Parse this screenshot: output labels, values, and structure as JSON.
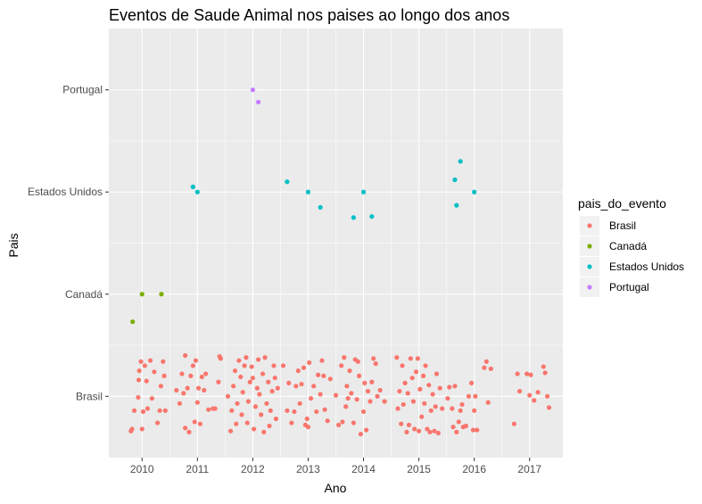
{
  "chart_data": {
    "type": "scatter",
    "title": "Eventos de Saude Animal nos paises ao longo dos anos",
    "xlabel": "Ano",
    "ylabel": "Pais",
    "xlim": [
      2009.4,
      2017.6
    ],
    "xticks": [
      2010,
      2011,
      2012,
      2013,
      2014,
      2015,
      2016,
      2017
    ],
    "categories": [
      "Brasil",
      "Canadá",
      "Estados Unidos",
      "Portugal"
    ],
    "ylim": [
      0.4,
      4.6
    ],
    "grid": true,
    "legend": {
      "title": "pais_do_evento",
      "position": "right",
      "entries": [
        "Brasil",
        "Canadá",
        "Estados Unidos",
        "Portugal"
      ]
    },
    "colors": {
      "Brasil": "#F8766D",
      "Canadá": "#7CAE00",
      "Estados Unidos": "#00BFC4",
      "Portugal": "#C77CFF",
      "panel": "#EBEBEB",
      "grid": "#FFFFFF"
    },
    "series": [
      {
        "name": "Brasil",
        "points": [
          [
            2009.8,
            0.66
          ],
          [
            2009.82,
            0.68
          ],
          [
            2009.86,
            0.86
          ],
          [
            2009.93,
            0.99
          ],
          [
            2009.94,
            1.16
          ],
          [
            2009.95,
            1.25
          ],
          [
            2009.98,
            1.34
          ],
          [
            2010.0,
            0.68
          ],
          [
            2010.02,
            0.85
          ],
          [
            2010.05,
            1.3
          ],
          [
            2010.08,
            1.15
          ],
          [
            2010.1,
            0.88
          ],
          [
            2010.15,
            1.35
          ],
          [
            2010.18,
            0.98
          ],
          [
            2010.22,
            1.24
          ],
          [
            2010.28,
            0.74
          ],
          [
            2010.32,
            0.86
          ],
          [
            2010.34,
            1.1
          ],
          [
            2010.38,
            1.34
          ],
          [
            2010.4,
            1.2
          ],
          [
            2010.42,
            0.86
          ],
          [
            2010.62,
            1.06
          ],
          [
            2010.68,
            0.93
          ],
          [
            2010.72,
            1.22
          ],
          [
            2010.75,
            1.03
          ],
          [
            2010.78,
            1.4
          ],
          [
            2010.78,
            0.69
          ],
          [
            2010.82,
            1.08
          ],
          [
            2010.85,
            0.65
          ],
          [
            2010.88,
            1.2
          ],
          [
            2010.92,
            1.3
          ],
          [
            2010.95,
            0.75
          ],
          [
            2010.97,
            1.35
          ],
          [
            2011.0,
            0.94
          ],
          [
            2011.02,
            1.08
          ],
          [
            2011.05,
            0.73
          ],
          [
            2011.08,
            1.19
          ],
          [
            2011.12,
            1.06
          ],
          [
            2011.15,
            1.22
          ],
          [
            2011.2,
            0.87
          ],
          [
            2011.28,
            0.88
          ],
          [
            2011.32,
            0.88
          ],
          [
            2011.38,
            1.14
          ],
          [
            2011.4,
            1.39
          ],
          [
            2011.42,
            1.37
          ],
          [
            2011.55,
            1.0
          ],
          [
            2011.6,
            0.66
          ],
          [
            2011.62,
            0.86
          ],
          [
            2011.65,
            1.1
          ],
          [
            2011.68,
            1.25
          ],
          [
            2011.7,
            0.73
          ],
          [
            2011.72,
            0.93
          ],
          [
            2011.75,
            1.35
          ],
          [
            2011.78,
            1.19
          ],
          [
            2011.8,
            0.82
          ],
          [
            2011.82,
            1.04
          ],
          [
            2011.85,
            1.3
          ],
          [
            2011.88,
            1.38
          ],
          [
            2011.9,
            0.74
          ],
          [
            2011.92,
            0.95
          ],
          [
            2011.95,
            1.14
          ],
          [
            2011.98,
            1.29
          ],
          [
            2012.0,
            1.18
          ],
          [
            2012.02,
            0.68
          ],
          [
            2012.05,
            0.9
          ],
          [
            2012.08,
            1.08
          ],
          [
            2012.1,
            1.36
          ],
          [
            2012.12,
            1.02
          ],
          [
            2012.15,
            0.82
          ],
          [
            2012.18,
            1.22
          ],
          [
            2012.2,
            0.65
          ],
          [
            2012.22,
            1.38
          ],
          [
            2012.25,
            0.93
          ],
          [
            2012.28,
            1.14
          ],
          [
            2012.3,
            0.71
          ],
          [
            2012.32,
            0.86
          ],
          [
            2012.35,
            1.05
          ],
          [
            2012.38,
            1.3
          ],
          [
            2012.4,
            1.18
          ],
          [
            2012.42,
            0.78
          ],
          [
            2012.45,
            1.08
          ],
          [
            2012.55,
            1.3
          ],
          [
            2012.62,
            0.86
          ],
          [
            2012.65,
            1.13
          ],
          [
            2012.7,
            0.74
          ],
          [
            2012.75,
            0.85
          ],
          [
            2012.78,
            1.1
          ],
          [
            2012.82,
            1.25
          ],
          [
            2012.85,
            0.93
          ],
          [
            2012.88,
            1.12
          ],
          [
            2012.92,
            1.28
          ],
          [
            2012.95,
            0.72
          ],
          [
            2012.98,
            0.78
          ],
          [
            2013.0,
            0.7
          ],
          [
            2013.02,
            1.33
          ],
          [
            2013.05,
            0.98
          ],
          [
            2013.1,
            1.1
          ],
          [
            2013.15,
            0.85
          ],
          [
            2013.18,
            1.21
          ],
          [
            2013.22,
            1.02
          ],
          [
            2013.25,
            1.35
          ],
          [
            2013.28,
            1.2
          ],
          [
            2013.3,
            0.87
          ],
          [
            2013.35,
            0.76
          ],
          [
            2013.4,
            1.17
          ],
          [
            2013.5,
            1.01
          ],
          [
            2013.55,
            0.72
          ],
          [
            2013.62,
            0.75
          ],
          [
            2013.6,
            1.3
          ],
          [
            2013.65,
            1.38
          ],
          [
            2013.68,
            0.9
          ],
          [
            2013.7,
            1.1
          ],
          [
            2013.72,
            0.98
          ],
          [
            2013.75,
            1.25
          ],
          [
            2013.78,
            1.03
          ],
          [
            2013.82,
            0.74
          ],
          [
            2013.85,
            1.36
          ],
          [
            2013.88,
            0.97
          ],
          [
            2013.9,
            1.34
          ],
          [
            2013.92,
            1.2
          ],
          [
            2013.95,
            0.63
          ],
          [
            2014.0,
            0.85
          ],
          [
            2014.02,
            1.13
          ],
          [
            2014.05,
            0.67
          ],
          [
            2014.08,
            1.05
          ],
          [
            2014.12,
            0.95
          ],
          [
            2014.15,
            1.14
          ],
          [
            2014.18,
            1.37
          ],
          [
            2014.22,
            1.32
          ],
          [
            2014.25,
            1.0
          ],
          [
            2014.3,
            1.06
          ],
          [
            2014.38,
            0.95
          ],
          [
            2014.6,
            1.38
          ],
          [
            2014.62,
            0.88
          ],
          [
            2014.65,
            1.05
          ],
          [
            2014.68,
            0.73
          ],
          [
            2014.7,
            1.3
          ],
          [
            2014.72,
            0.92
          ],
          [
            2014.75,
            1.13
          ],
          [
            2014.78,
            0.65
          ],
          [
            2014.8,
            1.03
          ],
          [
            2014.82,
            0.72
          ],
          [
            2014.85,
            1.37
          ],
          [
            2014.88,
            1.18
          ],
          [
            2014.9,
            0.95
          ],
          [
            2014.92,
            0.68
          ],
          [
            2014.95,
            1.24
          ],
          [
            2014.98,
            1.37
          ],
          [
            2015.0,
            0.66
          ],
          [
            2015.02,
            1.07
          ],
          [
            2015.05,
            0.8
          ],
          [
            2015.08,
            1.2
          ],
          [
            2015.1,
            0.93
          ],
          [
            2015.12,
            1.3
          ],
          [
            2015.15,
            0.68
          ],
          [
            2015.18,
            1.11
          ],
          [
            2015.2,
            0.65
          ],
          [
            2015.22,
            0.86
          ],
          [
            2015.25,
            1.02
          ],
          [
            2015.28,
            0.66
          ],
          [
            2015.3,
            0.9
          ],
          [
            2015.32,
            1.22
          ],
          [
            2015.35,
            0.64
          ],
          [
            2015.38,
            1.08
          ],
          [
            2015.42,
            0.88
          ],
          [
            2015.52,
            0.98
          ],
          [
            2015.55,
            1.09
          ],
          [
            2015.6,
            0.88
          ],
          [
            2015.62,
            0.7
          ],
          [
            2015.65,
            1.1
          ],
          [
            2015.68,
            0.65
          ],
          [
            2015.72,
            0.75
          ],
          [
            2015.75,
            0.86
          ],
          [
            2015.78,
            0.92
          ],
          [
            2015.8,
            0.7
          ],
          [
            2015.85,
            0.71
          ],
          [
            2015.9,
            1.0
          ],
          [
            2015.95,
            1.13
          ],
          [
            2015.98,
            0.67
          ],
          [
            2016.0,
            0.86
          ],
          [
            2016.02,
            1.0
          ],
          [
            2016.05,
            0.67
          ],
          [
            2016.18,
            1.28
          ],
          [
            2016.22,
            1.34
          ],
          [
            2016.25,
            0.94
          ],
          [
            2016.3,
            1.27
          ],
          [
            2016.72,
            0.73
          ],
          [
            2016.78,
            1.22
          ],
          [
            2016.82,
            1.05
          ],
          [
            2016.95,
            1.22
          ],
          [
            2017.0,
            1.01
          ],
          [
            2017.02,
            1.21
          ],
          [
            2017.08,
            0.96
          ],
          [
            2017.15,
            1.04
          ],
          [
            2017.25,
            1.29
          ],
          [
            2017.28,
            1.23
          ],
          [
            2017.32,
            1.0
          ],
          [
            2017.35,
            0.89
          ]
        ]
      },
      {
        "name": "Canadá",
        "points": [
          [
            2009.83,
            1.73
          ],
          [
            2010.0,
            2.0
          ],
          [
            2010.35,
            2.0
          ]
        ]
      },
      {
        "name": "Estados Unidos",
        "points": [
          [
            2010.92,
            3.05
          ],
          [
            2011.0,
            3.0
          ],
          [
            2012.62,
            3.1
          ],
          [
            2013.0,
            3.0
          ],
          [
            2013.22,
            2.85
          ],
          [
            2013.82,
            2.75
          ],
          [
            2014.0,
            3.0
          ],
          [
            2014.15,
            2.76
          ],
          [
            2015.65,
            3.12
          ],
          [
            2015.68,
            2.87
          ],
          [
            2015.75,
            3.3
          ],
          [
            2016.0,
            3.0
          ]
        ]
      },
      {
        "name": "Portugal",
        "points": [
          [
            2012.0,
            4.0
          ],
          [
            2012.1,
            3.88
          ]
        ]
      }
    ]
  }
}
